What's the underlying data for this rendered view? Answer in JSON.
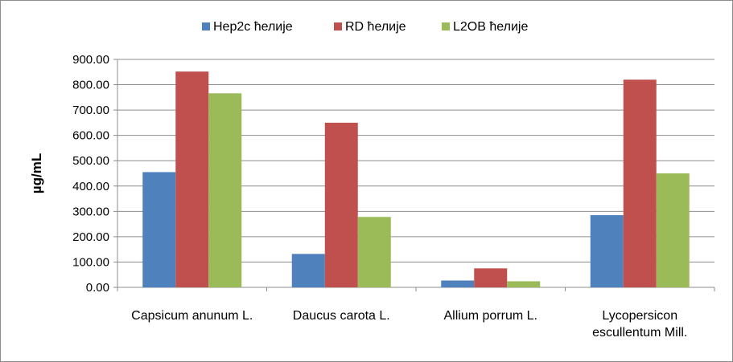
{
  "chart_data": {
    "type": "bar",
    "title": "",
    "xlabel": "",
    "ylabel": "µg/mL",
    "ylim": [
      0,
      900
    ],
    "yticks": [
      "0.00",
      "100.00",
      "200.00",
      "300.00",
      "400.00",
      "500.00",
      "600.00",
      "700.00",
      "800.00",
      "900.00"
    ],
    "grid": true,
    "legend_position": "top",
    "categories": [
      [
        "Capsicum anunum L."
      ],
      [
        "Daucus carota L."
      ],
      [
        "Allium porrum L."
      ],
      [
        "Lycopersicon",
        "escullentum Mill."
      ]
    ],
    "series": [
      {
        "name": "Hep2c ћелије",
        "color": "#4f81bd",
        "values": [
          455,
          132,
          27,
          285
        ]
      },
      {
        "name": "RD ћелије",
        "color": "#c0504d",
        "values": [
          852,
          650,
          75,
          820
        ]
      },
      {
        "name": "L2OB ћелије",
        "color": "#9bbb59",
        "values": [
          766,
          278,
          24,
          450
        ]
      }
    ]
  }
}
